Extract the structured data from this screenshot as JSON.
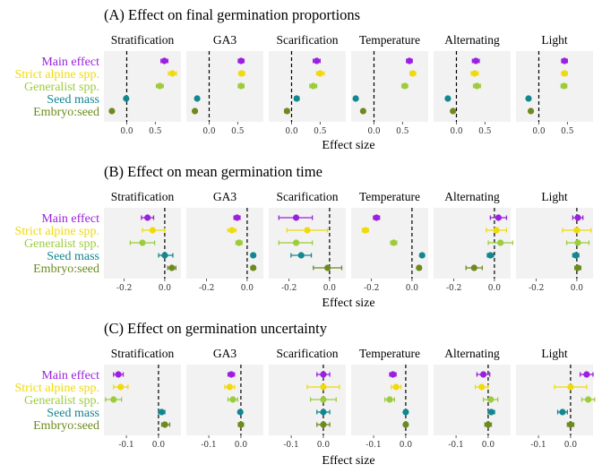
{
  "colors": {
    "Main effect": "#9b1fe0",
    "Strict alpine spp.": "#f0d90c",
    "Generalist spp.": "#9ccc3a",
    "Seed mass": "#12878f",
    "Embryo:seed": "#6c8a1d",
    "panel_bg": "#f2f2f2"
  },
  "rows": [
    "Main effect",
    "Strict alpine spp.",
    "Generalist spp.",
    "Seed mass",
    "Embryo:seed"
  ],
  "facets": [
    "Stratification",
    "GA3",
    "Scarification",
    "Temperature",
    "Alternating",
    "Light"
  ],
  "xlabel": "Effect size",
  "chart_data": [
    {
      "type": "scatter",
      "title": "(A) Effect on final germination proportions",
      "xlabel": "Effect size",
      "xlim": [
        -0.4,
        0.95
      ],
      "xticks": [
        0.0,
        0.5
      ],
      "xticklabels": [
        "0.0",
        "0.5"
      ],
      "facets": [
        {
          "name": "Stratification",
          "points": [
            {
              "row": "Main effect",
              "x": 0.66,
              "lo": 0.6,
              "hi": 0.72
            },
            {
              "row": "Strict alpine spp.",
              "x": 0.8,
              "lo": 0.73,
              "hi": 0.87
            },
            {
              "row": "Generalist spp.",
              "x": 0.58,
              "lo": 0.52,
              "hi": 0.64
            },
            {
              "row": "Seed mass",
              "x": -0.01,
              "lo": -0.04,
              "hi": 0.02
            },
            {
              "row": "Embryo:seed",
              "x": -0.26,
              "lo": -0.29,
              "hi": -0.23
            }
          ]
        },
        {
          "name": "GA3",
          "points": [
            {
              "row": "Main effect",
              "x": 0.56,
              "lo": 0.51,
              "hi": 0.61
            },
            {
              "row": "Strict alpine spp.",
              "x": 0.57,
              "lo": 0.52,
              "hi": 0.62
            },
            {
              "row": "Generalist spp.",
              "x": 0.56,
              "lo": 0.51,
              "hi": 0.61
            },
            {
              "row": "Seed mass",
              "x": -0.21,
              "lo": -0.24,
              "hi": -0.18
            },
            {
              "row": "Embryo:seed",
              "x": -0.25,
              "lo": -0.28,
              "hi": -0.22
            }
          ]
        },
        {
          "name": "Scarification",
          "points": [
            {
              "row": "Main effect",
              "x": 0.44,
              "lo": 0.38,
              "hi": 0.5
            },
            {
              "row": "Strict alpine spp.",
              "x": 0.5,
              "lo": 0.44,
              "hi": 0.57
            },
            {
              "row": "Generalist spp.",
              "x": 0.38,
              "lo": 0.32,
              "hi": 0.44
            },
            {
              "row": "Seed mass",
              "x": 0.09,
              "lo": 0.05,
              "hi": 0.13
            },
            {
              "row": "Embryo:seed",
              "x": -0.08,
              "lo": -0.12,
              "hi": -0.04
            }
          ]
        },
        {
          "name": "Temperature",
          "points": [
            {
              "row": "Main effect",
              "x": 0.62,
              "lo": 0.57,
              "hi": 0.67
            },
            {
              "row": "Strict alpine spp.",
              "x": 0.68,
              "lo": 0.63,
              "hi": 0.73
            },
            {
              "row": "Generalist spp.",
              "x": 0.54,
              "lo": 0.49,
              "hi": 0.59
            },
            {
              "row": "Seed mass",
              "x": -0.32,
              "lo": -0.35,
              "hi": -0.29
            },
            {
              "row": "Embryo:seed",
              "x": -0.19,
              "lo": -0.22,
              "hi": -0.16
            }
          ]
        },
        {
          "name": "Alternating",
          "points": [
            {
              "row": "Main effect",
              "x": 0.34,
              "lo": 0.28,
              "hi": 0.4
            },
            {
              "row": "Strict alpine spp.",
              "x": 0.32,
              "lo": 0.26,
              "hi": 0.38
            },
            {
              "row": "Generalist spp.",
              "x": 0.36,
              "lo": 0.3,
              "hi": 0.42
            },
            {
              "row": "Seed mass",
              "x": -0.15,
              "lo": -0.18,
              "hi": -0.12
            },
            {
              "row": "Embryo:seed",
              "x": -0.06,
              "lo": -0.09,
              "hi": -0.03
            }
          ]
        },
        {
          "name": "Light",
          "points": [
            {
              "row": "Main effect",
              "x": 0.45,
              "lo": 0.4,
              "hi": 0.5
            },
            {
              "row": "Strict alpine spp.",
              "x": 0.45,
              "lo": 0.4,
              "hi": 0.5
            },
            {
              "row": "Generalist spp.",
              "x": 0.44,
              "lo": 0.39,
              "hi": 0.49
            },
            {
              "row": "Seed mass",
              "x": -0.18,
              "lo": -0.21,
              "hi": -0.15
            },
            {
              "row": "Embryo:seed",
              "x": -0.14,
              "lo": -0.17,
              "hi": -0.11
            }
          ]
        }
      ]
    },
    {
      "type": "scatter",
      "title": "(B) Effect on mean germination time",
      "xlabel": "Effect size",
      "xlim": [
        -0.3,
        0.08
      ],
      "xticks": [
        -0.2,
        0.0
      ],
      "xticklabels": [
        "-0.2",
        "0.0"
      ],
      "facets": [
        {
          "name": "Stratification",
          "points": [
            {
              "row": "Main effect",
              "x": -0.085,
              "lo": -0.115,
              "hi": -0.055
            },
            {
              "row": "Strict alpine spp.",
              "x": -0.06,
              "lo": -0.11,
              "hi": 0.0
            },
            {
              "row": "Generalist spp.",
              "x": -0.11,
              "lo": -0.17,
              "hi": -0.05
            },
            {
              "row": "Seed mass",
              "x": 0.0,
              "lo": -0.03,
              "hi": 0.04
            },
            {
              "row": "Embryo:seed",
              "x": 0.035,
              "lo": 0.015,
              "hi": 0.055
            }
          ]
        },
        {
          "name": "GA3",
          "points": [
            {
              "row": "Main effect",
              "x": -0.05,
              "lo": -0.065,
              "hi": -0.035
            },
            {
              "row": "Strict alpine spp.",
              "x": -0.075,
              "lo": -0.095,
              "hi": -0.055
            },
            {
              "row": "Generalist spp.",
              "x": -0.04,
              "lo": -0.055,
              "hi": -0.025
            },
            {
              "row": "Seed mass",
              "x": 0.03,
              "lo": 0.02,
              "hi": 0.04
            },
            {
              "row": "Embryo:seed",
              "x": 0.03,
              "lo": 0.02,
              "hi": 0.04
            }
          ]
        },
        {
          "name": "Scarification",
          "points": [
            {
              "row": "Main effect",
              "x": -0.165,
              "lo": -0.25,
              "hi": -0.085
            },
            {
              "row": "Strict alpine spp.",
              "x": -0.11,
              "lo": -0.21,
              "hi": -0.01
            },
            {
              "row": "Generalist spp.",
              "x": -0.165,
              "lo": -0.25,
              "hi": -0.085
            },
            {
              "row": "Seed mass",
              "x": -0.14,
              "lo": -0.19,
              "hi": -0.09
            },
            {
              "row": "Embryo:seed",
              "x": -0.01,
              "lo": -0.08,
              "hi": 0.06
            }
          ]
        },
        {
          "name": "Temperature",
          "points": [
            {
              "row": "Main effect",
              "x": -0.175,
              "lo": -0.19,
              "hi": -0.16
            },
            {
              "row": "Strict alpine spp.",
              "x": -0.23,
              "lo": -0.245,
              "hi": -0.215
            },
            {
              "row": "Generalist spp.",
              "x": -0.09,
              "lo": -0.105,
              "hi": -0.075
            },
            {
              "row": "Seed mass",
              "x": 0.05,
              "lo": 0.04,
              "hi": 0.06
            },
            {
              "row": "Embryo:seed",
              "x": 0.035,
              "lo": 0.025,
              "hi": 0.045
            }
          ]
        },
        {
          "name": "Alternating",
          "points": [
            {
              "row": "Main effect",
              "x": 0.02,
              "lo": -0.02,
              "hi": 0.06
            },
            {
              "row": "Strict alpine spp.",
              "x": 0.01,
              "lo": -0.04,
              "hi": 0.06
            },
            {
              "row": "Generalist spp.",
              "x": 0.03,
              "lo": -0.03,
              "hi": 0.09
            },
            {
              "row": "Seed mass",
              "x": -0.02,
              "lo": -0.035,
              "hi": -0.005
            },
            {
              "row": "Embryo:seed",
              "x": -0.1,
              "lo": -0.14,
              "hi": -0.06
            }
          ]
        },
        {
          "name": "Light",
          "points": [
            {
              "row": "Main effect",
              "x": 0.005,
              "lo": -0.02,
              "hi": 0.03
            },
            {
              "row": "Strict alpine spp.",
              "x": 0.0,
              "lo": -0.07,
              "hi": 0.07
            },
            {
              "row": "Generalist spp.",
              "x": 0.005,
              "lo": -0.05,
              "hi": 0.06
            },
            {
              "row": "Seed mass",
              "x": -0.005,
              "lo": -0.02,
              "hi": 0.01
            },
            {
              "row": "Embryo:seed",
              "x": 0.005,
              "lo": -0.01,
              "hi": 0.02
            }
          ]
        }
      ]
    },
    {
      "type": "scatter",
      "title": "(C) Effect on germination uncertainty",
      "xlabel": "Effect size",
      "xlim": [
        -0.17,
        0.07
      ],
      "xticks": [
        -0.1,
        0.0
      ],
      "xticklabels": [
        "-0.1",
        "0.0"
      ],
      "facets": [
        {
          "name": "Stratification",
          "points": [
            {
              "row": "Main effect",
              "x": -0.125,
              "lo": -0.14,
              "hi": -0.11
            },
            {
              "row": "Strict alpine spp.",
              "x": -0.118,
              "lo": -0.14,
              "hi": -0.095
            },
            {
              "row": "Generalist spp.",
              "x": -0.14,
              "lo": -0.165,
              "hi": -0.115
            },
            {
              "row": "Seed mass",
              "x": 0.01,
              "lo": 0.0,
              "hi": 0.02
            },
            {
              "row": "Embryo:seed",
              "x": 0.02,
              "lo": 0.01,
              "hi": 0.035
            }
          ]
        },
        {
          "name": "GA3",
          "points": [
            {
              "row": "Main effect",
              "x": -0.03,
              "lo": -0.04,
              "hi": -0.02
            },
            {
              "row": "Strict alpine spp.",
              "x": -0.035,
              "lo": -0.05,
              "hi": -0.02
            },
            {
              "row": "Generalist spp.",
              "x": -0.025,
              "lo": -0.04,
              "hi": -0.01
            },
            {
              "row": "Seed mass",
              "x": -0.002,
              "lo": -0.008,
              "hi": 0.004
            },
            {
              "row": "Embryo:seed",
              "x": 0.0,
              "lo": -0.008,
              "hi": 0.008
            }
          ]
        },
        {
          "name": "Scarification",
          "points": [
            {
              "row": "Main effect",
              "x": 0.0,
              "lo": -0.02,
              "hi": 0.02
            },
            {
              "row": "Strict alpine spp.",
              "x": 0.0,
              "lo": -0.05,
              "hi": 0.05
            },
            {
              "row": "Generalist spp.",
              "x": 0.0,
              "lo": -0.04,
              "hi": 0.04
            },
            {
              "row": "Seed mass",
              "x": 0.0,
              "lo": -0.02,
              "hi": 0.02
            },
            {
              "row": "Embryo:seed",
              "x": 0.0,
              "lo": -0.02,
              "hi": 0.02
            }
          ]
        },
        {
          "name": "Temperature",
          "points": [
            {
              "row": "Main effect",
              "x": -0.04,
              "lo": -0.05,
              "hi": -0.03
            },
            {
              "row": "Strict alpine spp.",
              "x": -0.03,
              "lo": -0.045,
              "hi": -0.015
            },
            {
              "row": "Generalist spp.",
              "x": -0.05,
              "lo": -0.065,
              "hi": -0.035
            },
            {
              "row": "Seed mass",
              "x": 0.0,
              "lo": -0.006,
              "hi": 0.006
            },
            {
              "row": "Embryo:seed",
              "x": 0.0,
              "lo": -0.006,
              "hi": 0.006
            }
          ]
        },
        {
          "name": "Alternating",
          "points": [
            {
              "row": "Main effect",
              "x": -0.015,
              "lo": -0.035,
              "hi": 0.005
            },
            {
              "row": "Strict alpine spp.",
              "x": -0.02,
              "lo": -0.04,
              "hi": 0.0
            },
            {
              "row": "Generalist spp.",
              "x": 0.008,
              "lo": -0.015,
              "hi": 0.03
            },
            {
              "row": "Seed mass",
              "x": 0.01,
              "lo": 0.0,
              "hi": 0.02
            },
            {
              "row": "Embryo:seed",
              "x": 0.0,
              "lo": -0.01,
              "hi": 0.01
            }
          ]
        },
        {
          "name": "Light",
          "points": [
            {
              "row": "Main effect",
              "x": 0.05,
              "lo": 0.03,
              "hi": 0.07
            },
            {
              "row": "Strict alpine spp.",
              "x": 0.0,
              "lo": -0.05,
              "hi": 0.05
            },
            {
              "row": "Generalist spp.",
              "x": 0.055,
              "lo": 0.035,
              "hi": 0.075
            },
            {
              "row": "Seed mass",
              "x": -0.025,
              "lo": -0.04,
              "hi": -0.01
            },
            {
              "row": "Embryo:seed",
              "x": 0.0,
              "lo": -0.01,
              "hi": 0.01
            }
          ]
        }
      ]
    }
  ]
}
